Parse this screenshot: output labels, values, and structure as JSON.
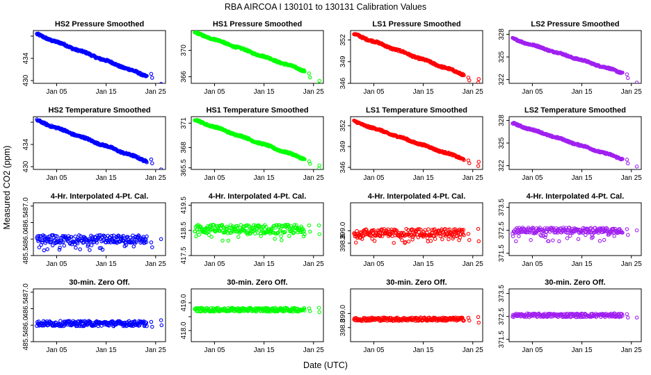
{
  "title": "RBA   AIRCOA I   130101 to 130131   Calibration Values",
  "xlabel": "Date (UTC)",
  "ylabel": "Measured CO2 (ppm)",
  "x_tick_labels": [
    "Jan 05",
    "Jan 15",
    "Jan 25"
  ],
  "colors": {
    "HS2": "#0000ff",
    "HS1": "#00ff00",
    "LS1": "#ff0000",
    "LS2": "#a020f0"
  },
  "chart_data": [
    {
      "type": "scatter",
      "row": 0,
      "col": 0,
      "title": "HS2 Pressure Smoothed",
      "series": "HS2",
      "color": "#0000ff",
      "xlim": [
        0.3,
        27
      ],
      "ylim": [
        429.5,
        439
      ],
      "yticks": [
        430,
        434,
        438
      ],
      "ytick_labels": [
        "430",
        "434",
        ""
      ],
      "pattern": "trend",
      "start": 438.3,
      "end": 430.8,
      "tail": [
        [
          24.1,
          431.2
        ],
        [
          24.3,
          430.5
        ],
        [
          26.1,
          429.4
        ]
      ]
    },
    {
      "type": "scatter",
      "row": 0,
      "col": 1,
      "title": "HS1 Pressure Smoothed",
      "series": "HS1",
      "color": "#00ff00",
      "xlim": [
        0.3,
        27
      ],
      "ylim": [
        365,
        373
      ],
      "yticks": [
        366,
        370
      ],
      "ytick_labels": [
        "366",
        "370"
      ],
      "pattern": "trend",
      "start": 372.7,
      "end": 366.9,
      "tail": [
        [
          24.1,
          366.5
        ],
        [
          24.3,
          365.9
        ],
        [
          26.1,
          364.9
        ],
        [
          26.2,
          365.4
        ]
      ]
    },
    {
      "type": "scatter",
      "row": 0,
      "col": 2,
      "title": "LS1 Pressure Smoothed",
      "series": "LS1",
      "color": "#ff0000",
      "xlim": [
        0.3,
        27
      ],
      "ylim": [
        346,
        353.3
      ],
      "yticks": [
        346,
        349,
        352
      ],
      "ytick_labels": [
        "346",
        "349",
        "352"
      ],
      "pattern": "trend",
      "start": 352.8,
      "end": 347.2,
      "tail": [
        [
          24.1,
          346.8
        ],
        [
          24.3,
          346.4
        ],
        [
          26.1,
          346.1
        ],
        [
          26.2,
          346.6
        ]
      ]
    },
    {
      "type": "scatter",
      "row": 0,
      "col": 3,
      "title": "LS2 Pressure Smoothed",
      "series": "LS2",
      "color": "#a020f0",
      "xlim": [
        0.3,
        27
      ],
      "ylim": [
        321.5,
        328.5
      ],
      "yticks": [
        322,
        325,
        328
      ],
      "ytick_labels": [
        "322",
        "325",
        "328"
      ],
      "pattern": "trend",
      "start": 327.4,
      "end": 322.9,
      "tail": [
        [
          24.1,
          322.7
        ],
        [
          24.3,
          322.2
        ],
        [
          26.1,
          321.6
        ]
      ]
    },
    {
      "type": "scatter",
      "row": 1,
      "col": 0,
      "title": "HS2 Temperature Smoothed",
      "series": "HS2",
      "color": "#0000ff",
      "xlim": [
        0.3,
        27
      ],
      "ylim": [
        429.5,
        439
      ],
      "yticks": [
        430,
        434,
        438
      ],
      "ytick_labels": [
        "430",
        "434",
        ""
      ],
      "pattern": "trend",
      "start": 438.3,
      "end": 431.0,
      "tail": [
        [
          24.1,
          431.3
        ],
        [
          24.3,
          430.6
        ],
        [
          26.1,
          429.5
        ]
      ]
    },
    {
      "type": "scatter",
      "row": 1,
      "col": 1,
      "title": "HS1 Temperature Smoothed",
      "series": "HS1",
      "color": "#00ff00",
      "xlim": [
        0.3,
        27
      ],
      "ylim": [
        365.3,
        371.8
      ],
      "yticks": [
        365.5,
        368,
        371
      ],
      "ytick_labels": [
        "365.5",
        "368",
        "371"
      ],
      "pattern": "trend",
      "start": 371.4,
      "end": 366.6,
      "tail": [
        [
          24.1,
          366.3
        ],
        [
          24.3,
          366.0
        ],
        [
          26.1,
          365.4
        ],
        [
          26.2,
          365.8
        ]
      ]
    },
    {
      "type": "scatter",
      "row": 1,
      "col": 2,
      "title": "LS1 Temperature Smoothed",
      "series": "LS1",
      "color": "#ff0000",
      "xlim": [
        0.3,
        27
      ],
      "ylim": [
        345.7,
        353.3
      ],
      "yticks": [
        346,
        349,
        352
      ],
      "ytick_labels": [
        "346",
        "349",
        "352"
      ],
      "pattern": "trend",
      "start": 352.6,
      "end": 347.2,
      "tail": [
        [
          24.1,
          347.0
        ],
        [
          24.3,
          346.6
        ],
        [
          26.1,
          346.2
        ],
        [
          26.2,
          346.8
        ]
      ]
    },
    {
      "type": "scatter",
      "row": 1,
      "col": 3,
      "title": "LS2 Temperature Smoothed",
      "series": "LS2",
      "color": "#a020f0",
      "xlim": [
        0.3,
        27
      ],
      "ylim": [
        321.5,
        328.5
      ],
      "yticks": [
        322,
        325,
        328
      ],
      "ytick_labels": [
        "322",
        "325",
        "328"
      ],
      "pattern": "trend",
      "start": 327.6,
      "end": 322.9,
      "tail": [
        [
          24.1,
          322.8
        ],
        [
          24.3,
          322.3
        ],
        [
          26.1,
          321.9
        ]
      ]
    },
    {
      "type": "scatter",
      "row": 2,
      "col": 0,
      "title": "4-Hr. Interpolated 4-Pt. Cal.",
      "series": "HS2",
      "color": "#0000ff",
      "xlim": [
        0.3,
        27
      ],
      "ylim": [
        485.5,
        487.1
      ],
      "yticks": [
        485.5,
        486,
        486.5,
        487
      ],
      "ytick_labels": [
        "485.5",
        "486.0",
        "486.5",
        "487.0"
      ],
      "pattern": "band",
      "center": 486.0,
      "spread": 0.12,
      "low": 485.65,
      "tail": [
        [
          24.1,
          485.9
        ],
        [
          24.3,
          485.75
        ],
        [
          26.1,
          486.0
        ]
      ]
    },
    {
      "type": "scatter",
      "row": 2,
      "col": 1,
      "title": "4-Hr. Interpolated 4-Pt. Cal.",
      "series": "HS1",
      "color": "#00ff00",
      "xlim": [
        0.3,
        27
      ],
      "ylim": [
        417.5,
        419.6
      ],
      "yticks": [
        417.5,
        418.5,
        419.5
      ],
      "ytick_labels": [
        "417.5",
        "418.5",
        "419.5"
      ],
      "pattern": "band",
      "center": 418.55,
      "spread": 0.18,
      "low": 418.05,
      "tail": [
        [
          24.1,
          418.7
        ],
        [
          24.3,
          418.45
        ],
        [
          26.1,
          418.7
        ],
        [
          26.2,
          418.35
        ]
      ]
    },
    {
      "type": "scatter",
      "row": 2,
      "col": 2,
      "title": "4-Hr. Interpolated 4-Pt. Cal.",
      "series": "LS1",
      "color": "#ff0000",
      "xlim": [
        0.3,
        27
      ],
      "ylim": [
        398.6,
        399.45
      ],
      "yticks": [
        398.8,
        399
      ],
      "ytick_labels": [
        "398.8",
        "399.0"
      ],
      "pattern": "band",
      "center": 398.97,
      "spread": 0.06,
      "low": 398.8,
      "tail": [
        [
          24.1,
          398.95
        ],
        [
          24.3,
          398.85
        ],
        [
          26.1,
          399.03
        ],
        [
          26.2,
          398.83
        ]
      ]
    },
    {
      "type": "scatter",
      "row": 2,
      "col": 3,
      "title": "4-Hr. Interpolated 4-Pt. Cal.",
      "series": "LS2",
      "color": "#a020f0",
      "xlim": [
        0.3,
        27
      ],
      "ylim": [
        371.4,
        373.7
      ],
      "yticks": [
        371.5,
        372.5,
        373.5
      ],
      "ytick_labels": [
        "371.5",
        "372.5",
        "373.5"
      ],
      "pattern": "band",
      "center": 372.5,
      "spread": 0.12,
      "low": 372.0,
      "tail": [
        [
          24.1,
          372.55
        ],
        [
          24.3,
          372.3
        ],
        [
          26.1,
          372.5
        ]
      ]
    },
    {
      "type": "scatter",
      "row": 3,
      "col": 0,
      "title": "30-min. Zero Off.",
      "series": "HS2",
      "color": "#0000ff",
      "xlim": [
        0.3,
        27
      ],
      "ylim": [
        485.5,
        487.1
      ],
      "yticks": [
        485.5,
        486,
        486.5,
        487
      ],
      "ytick_labels": [
        "485.5",
        "486.0",
        "486.5",
        "487.0"
      ],
      "pattern": "flat",
      "center": 486.05,
      "spread": 0.08,
      "tail": [
        [
          24.1,
          486.1
        ],
        [
          24.3,
          485.95
        ],
        [
          26.1,
          486.15
        ],
        [
          26.2,
          486.0
        ]
      ]
    },
    {
      "type": "scatter",
      "row": 3,
      "col": 1,
      "title": "30-min. Zero Off.",
      "series": "HS1",
      "color": "#00ff00",
      "xlim": [
        0.3,
        27
      ],
      "ylim": [
        417.6,
        419.5
      ],
      "yticks": [
        418,
        418.5,
        419
      ],
      "ytick_labels": [
        "418.0",
        "",
        "419.0"
      ],
      "pattern": "flat",
      "center": 418.75,
      "spread": 0.07,
      "tail": [
        [
          24.1,
          418.8
        ],
        [
          24.3,
          418.7
        ],
        [
          26.1,
          418.82
        ],
        [
          26.2,
          418.66
        ]
      ]
    },
    {
      "type": "scatter",
      "row": 3,
      "col": 2,
      "title": "30-min. Zero Off.",
      "series": "LS1",
      "color": "#ff0000",
      "xlim": [
        0.3,
        27
      ],
      "ylim": [
        398.6,
        399.35
      ],
      "yticks": [
        398.8,
        399
      ],
      "ytick_labels": [
        "398.8",
        "399.0"
      ],
      "pattern": "flat",
      "center": 398.92,
      "spread": 0.025,
      "tail": [
        [
          24.1,
          398.94
        ],
        [
          24.3,
          398.9
        ],
        [
          26.1,
          398.95
        ],
        [
          26.2,
          398.87
        ]
      ]
    },
    {
      "type": "scatter",
      "row": 3,
      "col": 3,
      "title": "30-min. Zero Off.",
      "series": "LS2",
      "color": "#a020f0",
      "xlim": [
        0.3,
        27
      ],
      "ylim": [
        371.4,
        373.7
      ],
      "yticks": [
        371.5,
        372.5,
        373.5
      ],
      "ytick_labels": [
        "371.5",
        "372.5",
        "373.5"
      ],
      "pattern": "flat",
      "center": 372.55,
      "spread": 0.08,
      "tail": [
        [
          24.1,
          372.6
        ],
        [
          24.3,
          372.45
        ],
        [
          26.1,
          372.45
        ]
      ]
    }
  ]
}
